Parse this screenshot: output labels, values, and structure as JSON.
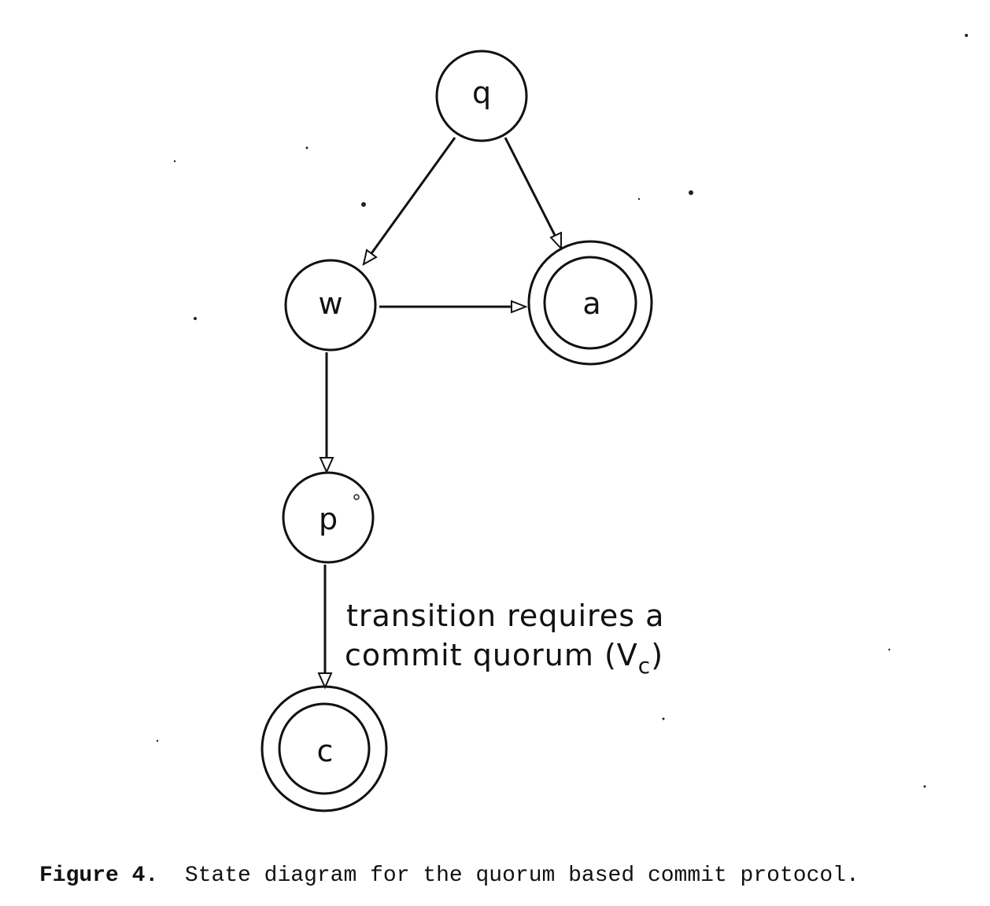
{
  "diagram": {
    "states": [
      {
        "id": "q",
        "label": "q",
        "final": false
      },
      {
        "id": "w",
        "label": "w",
        "final": false
      },
      {
        "id": "a",
        "label": "a",
        "final": true
      },
      {
        "id": "p",
        "label": "p",
        "final": false
      },
      {
        "id": "c",
        "label": "c",
        "final": true
      }
    ],
    "transitions": [
      {
        "from": "q",
        "to": "w"
      },
      {
        "from": "q",
        "to": "a"
      },
      {
        "from": "w",
        "to": "a"
      },
      {
        "from": "w",
        "to": "p"
      },
      {
        "from": "p",
        "to": "c"
      }
    ],
    "annotation": {
      "line1": "transition requires a",
      "line2_prefix": "commit quorum (V",
      "line2_subscript": "c",
      "line2_suffix": ")"
    }
  },
  "caption": {
    "label": "Figure 4.",
    "text": "State diagram for the quorum based commit protocol."
  }
}
